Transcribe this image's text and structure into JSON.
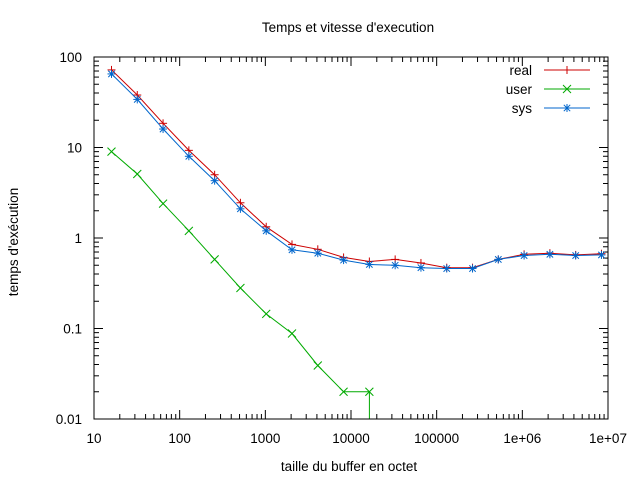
{
  "chart_data": {
    "type": "line",
    "title": "Temps et vitesse d'execution",
    "xlabel": "taille du buffer en octet",
    "ylabel": "temps d'exécution",
    "x_scale": "log",
    "y_scale": "log",
    "xlim": [
      10,
      10000000
    ],
    "ylim": [
      0.01,
      100
    ],
    "x_ticks": [
      {
        "value": 10,
        "label": "10"
      },
      {
        "value": 100,
        "label": "100"
      },
      {
        "value": 1000,
        "label": "1000"
      },
      {
        "value": 10000,
        "label": "10000"
      },
      {
        "value": 100000,
        "label": "100000"
      },
      {
        "value": 1000000,
        "label": "1e+06"
      },
      {
        "value": 10000000,
        "label": "1e+07"
      }
    ],
    "y_ticks": [
      {
        "value": 0.01,
        "label": "0.01"
      },
      {
        "value": 0.1,
        "label": "0.1"
      },
      {
        "value": 1,
        "label": "1"
      },
      {
        "value": 10,
        "label": "10"
      },
      {
        "value": 100,
        "label": "100"
      }
    ],
    "grid": false,
    "legend_position": "top-right",
    "series": [
      {
        "name": "real",
        "color": "#cc0000",
        "marker": "plus",
        "x": [
          16,
          32,
          64,
          128,
          256,
          512,
          1024,
          2048,
          4096,
          8192,
          16384,
          32768,
          65536,
          131072,
          262144,
          524288,
          1048576,
          2097152,
          4194304,
          8388608
        ],
        "y": [
          72,
          38,
          18.5,
          9.3,
          5.0,
          2.45,
          1.33,
          0.85,
          0.75,
          0.61,
          0.55,
          0.58,
          0.53,
          0.47,
          0.47,
          0.58,
          0.66,
          0.68,
          0.65,
          0.67
        ]
      },
      {
        "name": "user",
        "color": "#00aa00",
        "marker": "cross",
        "x": [
          16,
          32,
          64,
          128,
          256,
          512,
          1024,
          2048,
          4096,
          8192,
          16384
        ],
        "y": [
          9.0,
          5.1,
          2.4,
          1.2,
          0.58,
          0.28,
          0.145,
          0.088,
          0.039,
          0.02,
          0.02
        ],
        "drop_to_axis_after_last": true
      },
      {
        "name": "sys",
        "color": "#0066cc",
        "marker": "star",
        "x": [
          16,
          32,
          64,
          128,
          256,
          512,
          1024,
          2048,
          4096,
          8192,
          16384,
          32768,
          65536,
          131072,
          262144,
          524288,
          1048576,
          2097152,
          4194304,
          8388608
        ],
        "y": [
          65,
          34,
          16.0,
          8.0,
          4.3,
          2.1,
          1.2,
          0.74,
          0.68,
          0.57,
          0.51,
          0.5,
          0.47,
          0.46,
          0.46,
          0.58,
          0.64,
          0.66,
          0.64,
          0.65
        ]
      }
    ]
  }
}
